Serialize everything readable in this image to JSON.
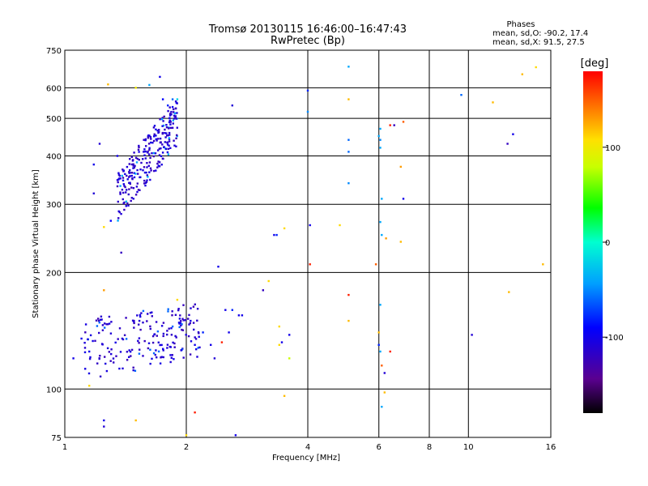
{
  "chart_data": {
    "type": "scatter",
    "title": "Tromsø 20130115 16:46:00–16:47:43",
    "subtitle": "RwPretec (Bp)",
    "xlabel": "Frequency [MHz]",
    "ylabel": "Stationary phase Virtual Height [km]",
    "x_scale": "log",
    "y_scale": "log",
    "xlim": [
      1,
      16
    ],
    "ylim": [
      75,
      750
    ],
    "x_ticks": [
      1,
      2,
      4,
      6,
      8,
      10,
      16
    ],
    "x_tick_labels": [
      "1",
      "2",
      "4",
      "6",
      "8",
      "10",
      "16"
    ],
    "y_ticks": [
      75,
      100,
      200,
      300,
      400,
      500,
      600,
      750
    ],
    "y_tick_labels": [
      "75",
      "100",
      "200",
      "300",
      "400",
      "500",
      "600",
      "750"
    ],
    "grid": true,
    "stats_title": "Phases",
    "stats": [
      "mean, sd,O: -90.2, 17.4",
      "mean, sd,X:  91.5, 27.5"
    ],
    "colorbar": {
      "label": "[deg]",
      "range": [
        -180,
        180
      ],
      "ticks": [
        100,
        0,
        -100
      ],
      "tick_labels": [
        "100",
        "0",
        "-100"
      ]
    },
    "points": [
      [
        1.72,
        640,
        -100
      ],
      [
        1.62,
        610,
        -40
      ],
      [
        1.75,
        560,
        -90
      ],
      [
        1.8,
        540,
        -80
      ],
      [
        1.85,
        535,
        -95
      ],
      [
        1.28,
        612,
        120
      ],
      [
        1.5,
        600,
        100
      ],
      [
        2.6,
        540,
        -110
      ],
      [
        1.85,
        560,
        -60
      ],
      [
        1.9,
        560,
        -20
      ],
      [
        1.18,
        380,
        -100
      ],
      [
        1.18,
        320,
        -110
      ],
      [
        1.22,
        430,
        -110
      ],
      [
        1.35,
        400,
        -100
      ],
      [
        1.3,
        272,
        -90
      ],
      [
        1.25,
        262,
        110
      ],
      [
        1.38,
        225,
        -120
      ],
      [
        1.42,
        305,
        -30
      ],
      [
        2.4,
        207,
        -100
      ],
      [
        1.25,
        180,
        130
      ],
      [
        1.1,
        135,
        -100
      ],
      [
        1.05,
        120,
        -100
      ],
      [
        1.15,
        125,
        -100
      ],
      [
        1.15,
        102,
        110
      ],
      [
        1.25,
        80,
        -110
      ],
      [
        1.25,
        83,
        -100
      ],
      [
        1.5,
        83,
        120
      ],
      [
        2.1,
        87,
        170
      ],
      [
        2.0,
        76,
        110
      ],
      [
        2.65,
        76,
        -100
      ],
      [
        3.1,
        180,
        -120
      ],
      [
        3.2,
        190,
        110
      ],
      [
        3.3,
        250,
        -100
      ],
      [
        3.35,
        250,
        -80
      ],
      [
        3.5,
        260,
        110
      ],
      [
        3.4,
        145,
        110
      ],
      [
        3.4,
        130,
        110
      ],
      [
        3.45,
        132,
        -100
      ],
      [
        3.6,
        138,
        -100
      ],
      [
        3.6,
        120,
        80
      ],
      [
        3.5,
        96,
        120
      ],
      [
        4.0,
        590,
        -80
      ],
      [
        4.0,
        520,
        -50
      ],
      [
        4.05,
        265,
        -100
      ],
      [
        4.05,
        210,
        170
      ],
      [
        4.8,
        265,
        110
      ],
      [
        5.05,
        680,
        -40
      ],
      [
        5.05,
        560,
        120
      ],
      [
        5.05,
        440,
        -60
      ],
      [
        5.05,
        410,
        -60
      ],
      [
        5.05,
        340,
        -50
      ],
      [
        5.05,
        175,
        170
      ],
      [
        5.05,
        150,
        120
      ],
      [
        5.9,
        210,
        150
      ],
      [
        6.0,
        450,
        -40
      ],
      [
        6.05,
        470,
        -40
      ],
      [
        6.05,
        420,
        -40
      ],
      [
        6.05,
        440,
        -50
      ],
      [
        6.05,
        270,
        -40
      ],
      [
        6.1,
        310,
        -40
      ],
      [
        6.1,
        250,
        -40
      ],
      [
        6.05,
        165,
        -40
      ],
      [
        6.0,
        140,
        120
      ],
      [
        6.0,
        130,
        -80
      ],
      [
        6.05,
        125,
        -40
      ],
      [
        6.1,
        115,
        150
      ],
      [
        6.2,
        110,
        -110
      ],
      [
        6.1,
        90,
        -40
      ],
      [
        6.2,
        98,
        120
      ],
      [
        6.25,
        245,
        130
      ],
      [
        6.4,
        480,
        170
      ],
      [
        6.55,
        480,
        -120
      ],
      [
        6.4,
        125,
        170
      ],
      [
        6.8,
        375,
        130
      ],
      [
        6.8,
        240,
        120
      ],
      [
        6.9,
        310,
        -100
      ],
      [
        6.9,
        490,
        150
      ],
      [
        9.6,
        575,
        -60
      ],
      [
        10.2,
        138,
        -110
      ],
      [
        11.5,
        550,
        120
      ],
      [
        12.5,
        430,
        -120
      ],
      [
        12.9,
        455,
        -100
      ],
      [
        12.6,
        178,
        120
      ],
      [
        13.6,
        650,
        120
      ],
      [
        14.7,
        678,
        110
      ],
      [
        15.3,
        210,
        120
      ],
      [
        2.1,
        130,
        -100
      ],
      [
        2.05,
        150,
        -100
      ],
      [
        2.2,
        140,
        -80
      ],
      [
        2.3,
        130,
        -100
      ],
      [
        2.35,
        120,
        -110
      ],
      [
        2.45,
        132,
        170
      ],
      [
        2.55,
        140,
        -100
      ],
      [
        2.5,
        160,
        -100
      ],
      [
        2.6,
        160,
        -80
      ],
      [
        2.7,
        155,
        -100
      ],
      [
        2.75,
        155,
        -100
      ],
      [
        1.9,
        170,
        110
      ],
      [
        1.85,
        145,
        -60
      ]
    ]
  }
}
